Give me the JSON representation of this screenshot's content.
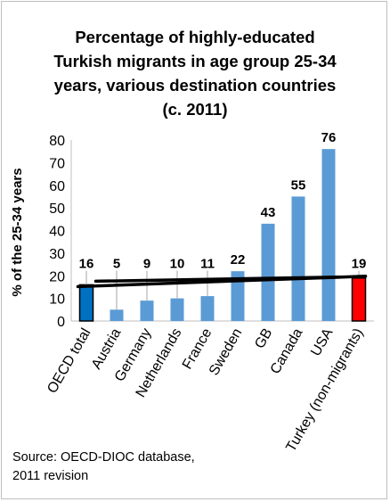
{
  "chart_data": {
    "type": "bar",
    "title_lines": [
      "Percentage of highly-educated",
      "Turkish migrants in age group 25-34",
      "years, various destination countries",
      "(c. 2011)"
    ],
    "ylabel": "% of the 25-34 years",
    "xlabel": "",
    "ylim": [
      0,
      80
    ],
    "yticks": [
      0,
      10,
      20,
      30,
      40,
      50,
      60,
      70,
      80
    ],
    "grid": false,
    "categories": [
      "OECD total",
      "Austria",
      "Germany",
      "Netherlands",
      "France",
      "Sweden",
      "GB",
      "Canada",
      "USA",
      "Turkey (non-migrants)"
    ],
    "values": [
      16,
      5,
      9,
      10,
      11,
      22,
      43,
      55,
      76,
      19
    ],
    "data_labels": [
      "16",
      "5",
      "9",
      "10",
      "11",
      "22",
      "43",
      "55",
      "76",
      "19"
    ],
    "highlight": {
      "OECD total": "#0070c0",
      "Turkey (non-migrants)": "#ff0000"
    },
    "bar_color": "#5b9bd5",
    "reference_line_color": "#000000",
    "source_lines": [
      "Source: OECD-DIOC database,",
      "2011 revision"
    ]
  }
}
